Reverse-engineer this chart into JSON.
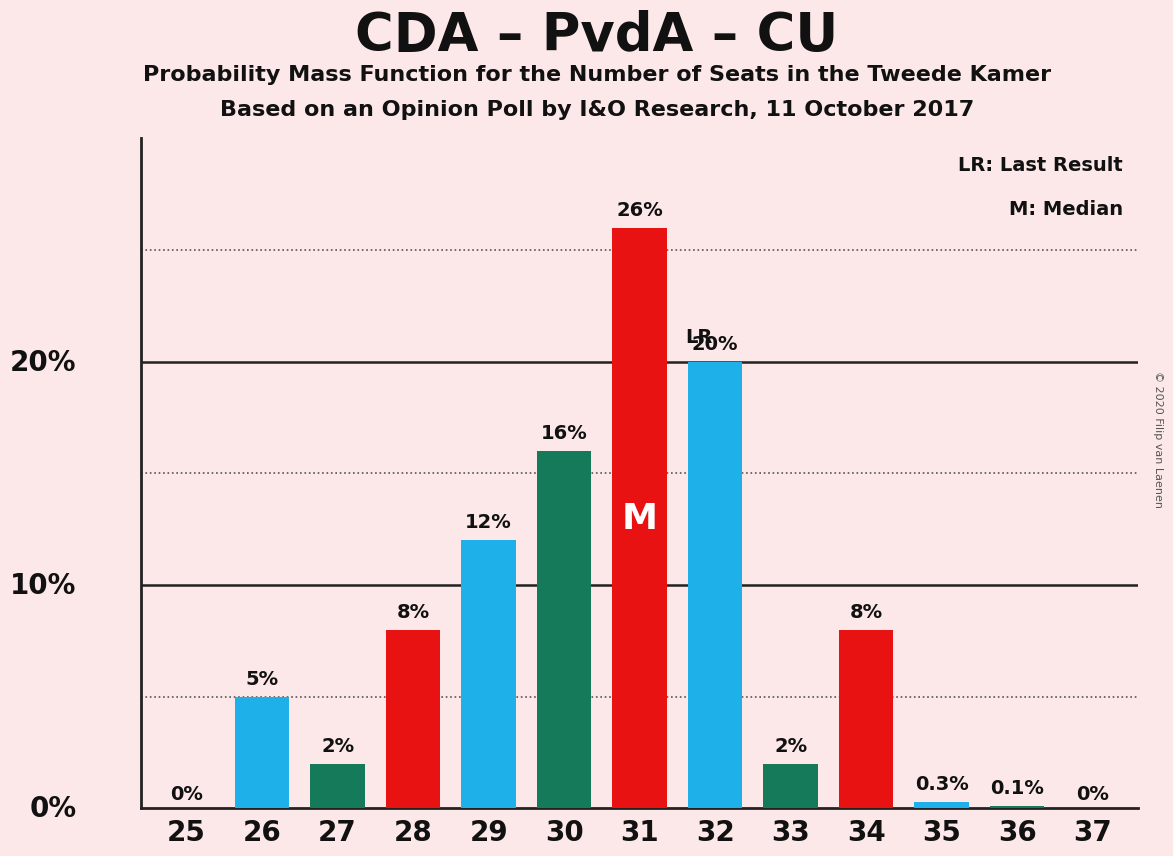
{
  "title": "CDA – PvdA – CU",
  "subtitle1": "Probability Mass Function for the Number of Seats in the Tweede Kamer",
  "subtitle2": "Based on an Opinion Poll by I&O Research, 11 October 2017",
  "copyright": "© 2020 Filip van Laenen",
  "seats": [
    25,
    26,
    27,
    28,
    29,
    30,
    31,
    32,
    33,
    34,
    35,
    36,
    37
  ],
  "values": [
    0.0,
    5.0,
    2.0,
    8.0,
    12.0,
    16.0,
    26.0,
    20.0,
    2.0,
    8.0,
    0.3,
    0.1,
    0.0
  ],
  "colors": [
    "#e81212",
    "#1eb0e8",
    "#147a5a",
    "#e81212",
    "#1eb0e8",
    "#147a5a",
    "#e81212",
    "#1eb0e8",
    "#147a5a",
    "#e81212",
    "#1eb0e8",
    "#147a5a",
    "#e81212"
  ],
  "labels": [
    "0%",
    "5%",
    "2%",
    "8%",
    "12%",
    "16%",
    "26%",
    "20%",
    "2%",
    "8%",
    "0.3%",
    "0.1%",
    "0%"
  ],
  "median_seat": 31,
  "lr_seat": 32,
  "ylim": [
    0,
    30
  ],
  "background_color": "#fce8e8",
  "dotted_line_values": [
    5,
    15,
    25
  ],
  "solid_line_values": [
    10,
    20
  ],
  "ylabel_ticks": [
    0,
    10,
    20
  ],
  "ylabel_labels": [
    "0%",
    "10%",
    "20%"
  ]
}
